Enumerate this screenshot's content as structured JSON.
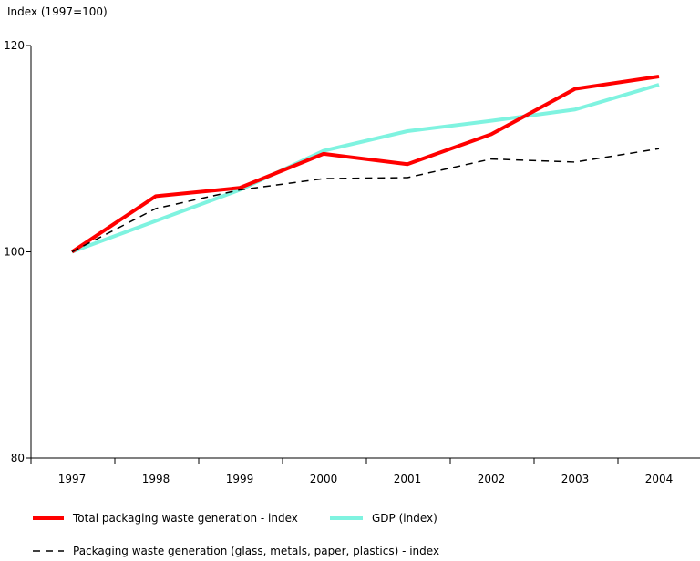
{
  "chart_data": {
    "type": "line",
    "ylabel": "Index (1997=100)",
    "categories": [
      "1997",
      "1998",
      "1999",
      "2000",
      "2001",
      "2002",
      "2003",
      "2004"
    ],
    "ylim": [
      80,
      120
    ],
    "yticks": [
      "80",
      "100",
      "120"
    ],
    "legend_position": "bottom",
    "series": [
      {
        "name": "Total packaging waste generation - index",
        "values": [
          100,
          105.4,
          106.2,
          109.5,
          108.5,
          111.4,
          115.8,
          117.0
        ],
        "color": "#ff0000",
        "style": "solid"
      },
      {
        "name": "GDP (index)",
        "values": [
          100,
          103.0,
          106.0,
          109.8,
          111.7,
          112.7,
          113.8,
          116.2
        ],
        "color": "#7ff3e0",
        "style": "solid"
      },
      {
        "name": "Packaging waste generation (glass, metals, paper, plastics) - index",
        "values": [
          100,
          104.2,
          106.0,
          107.1,
          107.2,
          109.0,
          108.7,
          110.0
        ],
        "color": "#000000",
        "style": "dashed"
      }
    ]
  }
}
